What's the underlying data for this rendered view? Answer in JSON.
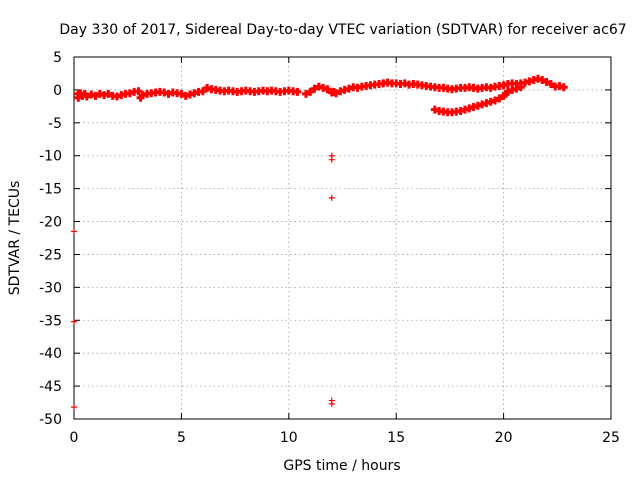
{
  "chart_data": {
    "type": "scatter",
    "title": "Day 330 of 2017, Sidereal Day-to-day VTEC variation (SDTVAR) for receiver ac67",
    "xlabel": "GPS time / hours",
    "ylabel": "SDTVAR / TECUs",
    "xlim": [
      0,
      25
    ],
    "ylim": [
      -50,
      5
    ],
    "xticks": [
      0,
      5,
      10,
      15,
      20,
      25
    ],
    "yticks": [
      5,
      0,
      -5,
      -10,
      -15,
      -20,
      -25,
      -30,
      -35,
      -40,
      -45,
      -50
    ],
    "grid": true,
    "series_color": "#ff0000",
    "series": [
      {
        "name": "SDTVAR main trace",
        "points": [
          [
            0.2,
            -0.6
          ],
          [
            0.2,
            -1.2
          ],
          [
            0.3,
            -0.5
          ],
          [
            0.4,
            -0.9
          ],
          [
            0.5,
            -0.6
          ],
          [
            0.6,
            -1.0
          ],
          [
            0.8,
            -0.7
          ],
          [
            1.0,
            -0.9
          ],
          [
            1.2,
            -0.6
          ],
          [
            1.4,
            -0.8
          ],
          [
            1.6,
            -0.6
          ],
          [
            1.8,
            -0.9
          ],
          [
            2.0,
            -1.0
          ],
          [
            2.2,
            -0.8
          ],
          [
            2.4,
            -0.6
          ],
          [
            2.6,
            -0.5
          ],
          [
            2.8,
            -0.3
          ],
          [
            3.0,
            -0.2
          ],
          [
            3.1,
            -1.2
          ],
          [
            3.2,
            -0.8
          ],
          [
            3.4,
            -0.6
          ],
          [
            3.6,
            -0.5
          ],
          [
            3.8,
            -0.4
          ],
          [
            4.0,
            -0.3
          ],
          [
            4.2,
            -0.4
          ],
          [
            4.4,
            -0.6
          ],
          [
            4.6,
            -0.4
          ],
          [
            4.8,
            -0.5
          ],
          [
            5.0,
            -0.6
          ],
          [
            5.2,
            -0.9
          ],
          [
            5.4,
            -0.7
          ],
          [
            5.6,
            -0.5
          ],
          [
            5.8,
            -0.3
          ],
          [
            6.0,
            -0.2
          ],
          [
            6.2,
            0.3
          ],
          [
            6.4,
            0.1
          ],
          [
            6.6,
            0.0
          ],
          [
            6.8,
            -0.1
          ],
          [
            7.0,
            -0.2
          ],
          [
            7.2,
            -0.1
          ],
          [
            7.4,
            -0.2
          ],
          [
            7.6,
            -0.3
          ],
          [
            7.8,
            -0.2
          ],
          [
            8.0,
            -0.1
          ],
          [
            8.2,
            -0.2
          ],
          [
            8.4,
            -0.3
          ],
          [
            8.6,
            -0.2
          ],
          [
            8.8,
            -0.1
          ],
          [
            9.0,
            -0.2
          ],
          [
            9.2,
            -0.1
          ],
          [
            9.4,
            -0.2
          ],
          [
            9.6,
            -0.3
          ],
          [
            9.8,
            -0.2
          ],
          [
            10.0,
            -0.1
          ],
          [
            10.2,
            -0.2
          ],
          [
            10.4,
            -0.3
          ],
          [
            10.8,
            -0.6
          ],
          [
            11.0,
            -0.3
          ],
          [
            11.2,
            0.2
          ],
          [
            11.4,
            0.5
          ],
          [
            11.6,
            0.3
          ],
          [
            11.8,
            0.1
          ],
          [
            12.0,
            -0.4
          ],
          [
            12.1,
            -0.3
          ],
          [
            12.2,
            -0.5
          ],
          [
            12.4,
            -0.2
          ],
          [
            12.6,
            0.0
          ],
          [
            12.8,
            0.2
          ],
          [
            13.0,
            0.4
          ],
          [
            13.2,
            0.3
          ],
          [
            13.4,
            0.5
          ],
          [
            13.6,
            0.6
          ],
          [
            13.8,
            0.7
          ],
          [
            14.0,
            0.8
          ],
          [
            14.2,
            0.9
          ],
          [
            14.4,
            1.0
          ],
          [
            14.6,
            1.1
          ],
          [
            14.8,
            1.0
          ],
          [
            15.0,
            1.0
          ],
          [
            15.2,
            0.9
          ],
          [
            15.4,
            1.0
          ],
          [
            15.6,
            0.8
          ],
          [
            15.8,
            0.9
          ],
          [
            16.0,
            0.8
          ],
          [
            16.2,
            0.7
          ],
          [
            16.4,
            0.6
          ],
          [
            16.6,
            0.5
          ],
          [
            16.8,
            0.4
          ],
          [
            17.0,
            0.3
          ],
          [
            17.2,
            0.3
          ],
          [
            17.4,
            0.2
          ],
          [
            17.6,
            0.1
          ],
          [
            17.8,
            0.2
          ],
          [
            18.0,
            0.3
          ],
          [
            18.2,
            0.3
          ],
          [
            18.4,
            0.4
          ],
          [
            18.6,
            0.3
          ],
          [
            18.8,
            0.2
          ],
          [
            19.0,
            0.3
          ],
          [
            19.2,
            0.4
          ],
          [
            19.4,
            0.3
          ],
          [
            19.6,
            0.5
          ],
          [
            19.8,
            0.6
          ],
          [
            20.0,
            0.7
          ],
          [
            20.2,
            0.9
          ],
          [
            20.4,
            1.0
          ],
          [
            20.6,
            0.9
          ],
          [
            20.8,
            1.0
          ],
          [
            21.0,
            1.1
          ],
          [
            21.2,
            1.3
          ],
          [
            21.4,
            1.5
          ],
          [
            21.6,
            1.7
          ],
          [
            21.8,
            1.5
          ],
          [
            22.0,
            1.2
          ],
          [
            22.2,
            0.9
          ],
          [
            22.4,
            0.5
          ],
          [
            22.6,
            0.6
          ],
          [
            22.8,
            0.4
          ]
        ]
      },
      {
        "name": "SDTVAR secondary arc",
        "points": [
          [
            16.8,
            -3.0
          ],
          [
            17.0,
            -3.2
          ],
          [
            17.2,
            -3.3
          ],
          [
            17.4,
            -3.4
          ],
          [
            17.6,
            -3.4
          ],
          [
            17.8,
            -3.3
          ],
          [
            18.0,
            -3.2
          ],
          [
            18.2,
            -3.0
          ],
          [
            18.4,
            -2.8
          ],
          [
            18.6,
            -2.6
          ],
          [
            18.8,
            -2.4
          ],
          [
            19.0,
            -2.2
          ],
          [
            19.2,
            -2.0
          ],
          [
            19.4,
            -1.8
          ],
          [
            19.6,
            -1.6
          ],
          [
            19.8,
            -1.3
          ],
          [
            20.0,
            -0.9
          ],
          [
            20.1,
            -0.6
          ],
          [
            20.2,
            -0.3
          ],
          [
            20.4,
            0.0
          ],
          [
            20.6,
            0.2
          ],
          [
            20.8,
            0.4
          ]
        ]
      },
      {
        "name": "SDTVAR outliers",
        "points": [
          [
            12.0,
            -10.0
          ],
          [
            12.0,
            -10.6
          ],
          [
            12.0,
            -16.4
          ],
          [
            12.0,
            -47.2
          ],
          [
            12.0,
            -47.7
          ]
        ]
      },
      {
        "name": "SDTVAR edge points",
        "points": [
          [
            0.0,
            -21.5
          ],
          [
            0.0,
            -35.2
          ],
          [
            0.0,
            -48.2
          ]
        ]
      }
    ]
  }
}
